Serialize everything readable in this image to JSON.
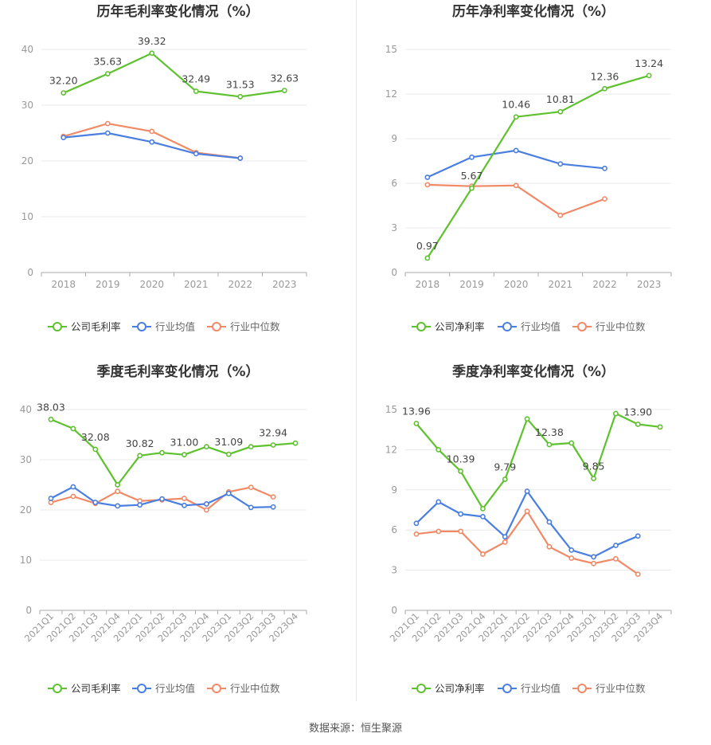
{
  "source_note": "数据来源：恒生聚源",
  "colors": {
    "company": "#5ec12e",
    "avg": "#4a7ee0",
    "median": "#f08a66",
    "grid": "#e8e8ec",
    "axis": "#999999",
    "title": "#333333"
  },
  "chart_data": [
    {
      "type": "line",
      "title": "历年毛利率变化情况（%）",
      "categories": [
        "2018",
        "2019",
        "2020",
        "2021",
        "2022",
        "2023"
      ],
      "ylim": [
        0,
        40
      ],
      "yticks": [
        0,
        10,
        20,
        30,
        40
      ],
      "series": [
        {
          "name": "公司毛利率",
          "color": "#5ec12e",
          "values": [
            32.2,
            35.63,
            39.32,
            32.49,
            31.53,
            32.63
          ]
        },
        {
          "name": "行业均值",
          "color": "#4a7ee0",
          "values": [
            24.2,
            25.0,
            23.4,
            21.3,
            20.5,
            null
          ]
        },
        {
          "name": "行业中位数",
          "color": "#f08a66",
          "values": [
            24.4,
            26.7,
            25.3,
            21.5,
            20.5,
            null
          ]
        }
      ],
      "data_labels": [
        {
          "index": 0,
          "text": "32.20"
        },
        {
          "index": 1,
          "text": "35.63"
        },
        {
          "index": 2,
          "text": "39.32"
        },
        {
          "index": 3,
          "text": "32.49"
        },
        {
          "index": 4,
          "text": "31.53"
        },
        {
          "index": 5,
          "text": "32.63"
        }
      ],
      "legend": "bottom",
      "grid": true
    },
    {
      "type": "line",
      "title": "历年净利率变化情况（%）",
      "categories": [
        "2018",
        "2019",
        "2020",
        "2021",
        "2022",
        "2023"
      ],
      "ylim": [
        0,
        15
      ],
      "yticks": [
        0,
        3,
        6,
        9,
        12,
        15
      ],
      "series": [
        {
          "name": "公司净利率",
          "color": "#5ec12e",
          "values": [
            0.97,
            5.67,
            10.46,
            10.81,
            12.36,
            13.24
          ]
        },
        {
          "name": "行业均值",
          "color": "#4a7ee0",
          "values": [
            6.4,
            7.75,
            8.2,
            7.3,
            7.0,
            null
          ]
        },
        {
          "name": "行业中位数",
          "color": "#f08a66",
          "values": [
            5.9,
            5.8,
            5.85,
            3.85,
            4.95,
            null
          ]
        }
      ],
      "data_labels": [
        {
          "index": 0,
          "text": "0.97"
        },
        {
          "index": 1,
          "text": "5.67"
        },
        {
          "index": 2,
          "text": "10.46"
        },
        {
          "index": 3,
          "text": "10.81"
        },
        {
          "index": 4,
          "text": "12.36"
        },
        {
          "index": 5,
          "text": "13.24"
        }
      ],
      "legend": "bottom",
      "grid": true
    },
    {
      "type": "line",
      "title": "季度毛利率变化情况（%）",
      "categories": [
        "2021Q1",
        "2021Q2",
        "2021Q3",
        "2021Q4",
        "2022Q1",
        "2022Q2",
        "2022Q3",
        "2022Q4",
        "2023Q1",
        "2023Q2",
        "2023Q3",
        "2023Q4"
      ],
      "ylim": [
        0,
        40
      ],
      "yticks": [
        0,
        10,
        20,
        30,
        40
      ],
      "series": [
        {
          "name": "公司毛利率",
          "color": "#5ec12e",
          "values": [
            38.03,
            36.2,
            32.08,
            25.0,
            30.82,
            31.4,
            31.0,
            32.6,
            31.09,
            32.6,
            32.94,
            33.3
          ]
        },
        {
          "name": "行业均值",
          "color": "#4a7ee0",
          "values": [
            22.3,
            24.6,
            21.5,
            20.8,
            21.0,
            22.2,
            20.9,
            21.2,
            23.3,
            20.5,
            20.6,
            null
          ]
        },
        {
          "name": "行业中位数",
          "color": "#f08a66",
          "values": [
            21.5,
            22.7,
            21.3,
            23.7,
            21.8,
            22.0,
            22.3,
            20.0,
            23.6,
            24.5,
            22.6,
            null
          ]
        }
      ],
      "data_labels": [
        {
          "index": 0,
          "text": "38.03"
        },
        {
          "index": 2,
          "text": "32.08"
        },
        {
          "index": 4,
          "text": "30.82"
        },
        {
          "index": 6,
          "text": "31.00"
        },
        {
          "index": 8,
          "text": "31.09"
        },
        {
          "index": 10,
          "text": "32.94"
        }
      ],
      "legend": "bottom",
      "grid": true
    },
    {
      "type": "line",
      "title": "季度净利率变化情况（%）",
      "categories": [
        "2021Q1",
        "2021Q2",
        "2021Q3",
        "2021Q4",
        "2022Q1",
        "2022Q2",
        "2022Q3",
        "2022Q4",
        "2023Q1",
        "2023Q2",
        "2023Q3",
        "2023Q4"
      ],
      "ylim": [
        0,
        15
      ],
      "yticks": [
        0,
        3,
        6,
        9,
        12,
        15
      ],
      "series": [
        {
          "name": "公司净利率",
          "color": "#5ec12e",
          "values": [
            13.96,
            12.0,
            10.39,
            7.6,
            9.79,
            14.3,
            12.38,
            12.5,
            9.85,
            14.7,
            13.9,
            13.7
          ]
        },
        {
          "name": "行业均值",
          "color": "#4a7ee0",
          "values": [
            6.5,
            8.1,
            7.2,
            7.0,
            5.5,
            8.9,
            6.6,
            4.5,
            4.0,
            4.85,
            5.55,
            null
          ]
        },
        {
          "name": "行业中位数",
          "color": "#f08a66",
          "values": [
            5.7,
            5.9,
            5.9,
            4.2,
            5.1,
            7.4,
            4.75,
            3.9,
            3.5,
            3.85,
            2.7,
            null
          ]
        }
      ],
      "data_labels": [
        {
          "index": 0,
          "text": "13.96"
        },
        {
          "index": 2,
          "text": "10.39"
        },
        {
          "index": 4,
          "text": "9.79"
        },
        {
          "index": 6,
          "text": "12.38"
        },
        {
          "index": 8,
          "text": "9.85"
        },
        {
          "index": 10,
          "text": "13.90"
        }
      ],
      "legend": "bottom",
      "grid": true
    }
  ]
}
